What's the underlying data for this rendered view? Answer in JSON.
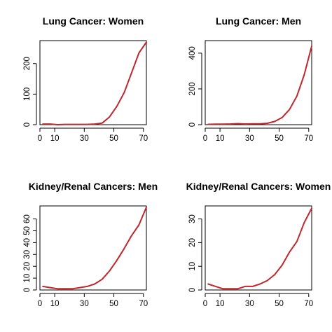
{
  "colors": {
    "line": "#c0272d",
    "axis": "#000000",
    "background": "#ffffff"
  },
  "chart_data": [
    {
      "type": "line",
      "title": "Lung Cancer: Women",
      "xlabel": "",
      "ylabel": "",
      "xlim": [
        0,
        72
      ],
      "ylim": [
        0,
        275
      ],
      "xticks": [
        0,
        10,
        30,
        50,
        70
      ],
      "yticks": [
        0,
        100,
        200
      ],
      "grid": false,
      "series": [
        {
          "x": [
            2,
            7,
            12,
            17,
            22,
            27,
            32,
            37,
            42,
            47,
            52,
            57,
            62,
            67,
            72
          ],
          "y": [
            2,
            2,
            0,
            1,
            1,
            1,
            1,
            2,
            5,
            25,
            60,
            105,
            170,
            235,
            270
          ]
        }
      ]
    },
    {
      "type": "line",
      "title": "Lung Cancer: Men",
      "xlabel": "",
      "ylabel": "",
      "xlim": [
        0,
        72
      ],
      "ylim": [
        0,
        470
      ],
      "xticks": [
        0,
        10,
        30,
        50,
        70
      ],
      "yticks": [
        0,
        200,
        400
      ],
      "grid": false,
      "series": [
        {
          "x": [
            2,
            7,
            12,
            17,
            22,
            27,
            32,
            37,
            42,
            47,
            52,
            57,
            62,
            67,
            72
          ],
          "y": [
            2,
            3,
            3,
            4,
            6,
            4,
            5,
            5,
            8,
            18,
            40,
            85,
            160,
            280,
            440
          ]
        }
      ]
    },
    {
      "type": "line",
      "title": "Kidney/Renal Cancers: Men",
      "xlabel": "",
      "ylabel": "",
      "xlim": [
        0,
        72
      ],
      "ylim": [
        0,
        71
      ],
      "xticks": [
        0,
        10,
        30,
        50,
        70
      ],
      "yticks": [
        0,
        10,
        20,
        30,
        40,
        50,
        60
      ],
      "grid": false,
      "series": [
        {
          "x": [
            2,
            7,
            12,
            17,
            22,
            27,
            32,
            37,
            42,
            47,
            52,
            57,
            62,
            67,
            72
          ],
          "y": [
            3,
            2,
            1,
            1,
            1,
            2,
            3,
            5,
            9,
            16,
            25,
            35,
            46,
            55,
            70
          ]
        }
      ]
    },
    {
      "type": "line",
      "title": "Kidney/Renal Cancers: Women",
      "xlabel": "",
      "ylabel": "",
      "xlim": [
        0,
        72
      ],
      "ylim": [
        0,
        35.5
      ],
      "xticks": [
        0,
        10,
        30,
        50,
        70
      ],
      "yticks": [
        0,
        10,
        20,
        30
      ],
      "grid": false,
      "series": [
        {
          "x": [
            2,
            7,
            12,
            17,
            22,
            27,
            32,
            37,
            42,
            47,
            52,
            57,
            62,
            67,
            72
          ],
          "y": [
            2.5,
            1.5,
            0.5,
            0.5,
            0.5,
            1.5,
            1.5,
            2.5,
            4,
            6.5,
            10.5,
            16,
            20.5,
            28.5,
            34.5
          ]
        }
      ]
    }
  ]
}
